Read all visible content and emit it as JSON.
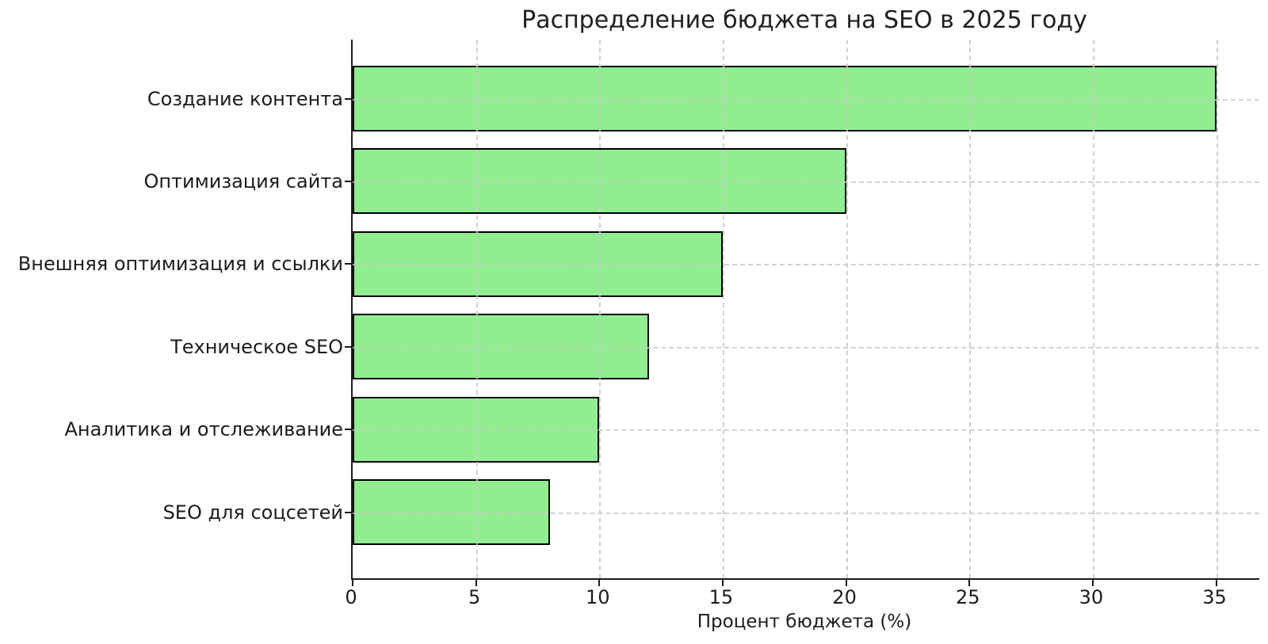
{
  "chart_data": {
    "type": "bar",
    "orientation": "horizontal",
    "title": "Распределение бюджета на SEO в 2025 году",
    "xlabel": "Процент бюджета (%)",
    "categories": [
      "Создание контента",
      "Оптимизация сайта",
      "Внешняя оптимизация и ссылки",
      "Техническое SEO",
      "Аналитика и отслеживание",
      "SEO для соцсетей"
    ],
    "values": [
      35,
      20,
      15,
      12,
      10,
      8
    ],
    "xticks": [
      0,
      5,
      10,
      15,
      20,
      25,
      30,
      35
    ],
    "xlim": [
      0,
      36.75
    ],
    "grid": "dashed",
    "legend": "none",
    "colors": {
      "bar_fill": "#90EE90",
      "bar_edge": "#000000",
      "grid": "#c9c9c9",
      "text": "#1c1c1c",
      "background": "#ffffff"
    }
  }
}
